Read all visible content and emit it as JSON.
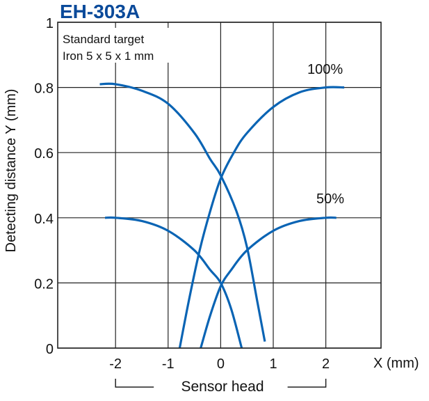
{
  "chart_data": {
    "type": "line",
    "title": "EH-303A",
    "title_color": "#0a4a9a",
    "xlabel": "X (mm)",
    "ylabel": "Detecting distance Y (mm)",
    "xlim": [
      -3.1,
      3.05
    ],
    "ylim": [
      0,
      1
    ],
    "xticks": [
      -2,
      -1,
      0,
      1,
      2
    ],
    "xtick_labels": [
      "-2",
      "-1",
      "0",
      "1",
      "2"
    ],
    "yticks": [
      0,
      0.2,
      0.4,
      0.6,
      0.8,
      1
    ],
    "ytick_labels": [
      "0",
      "0.2",
      "0.4",
      "0.6",
      "0.8",
      "1"
    ],
    "grid": true,
    "line_color": "#0a64b4",
    "annotations": {
      "target_line1": "Standard target",
      "target_line2": "Iron 5 x 5 x 1 mm",
      "label_100": "100%",
      "label_50": "50%",
      "sensor_head": "Sensor head"
    },
    "sensor_head_range": [
      -2,
      2
    ],
    "series": [
      {
        "group": "100%",
        "points": [
          [
            -2.3,
            0.81
          ],
          [
            -2,
            0.81
          ],
          [
            -1.5,
            0.79
          ],
          [
            -1,
            0.75
          ],
          [
            -0.5,
            0.66
          ],
          [
            -0.2,
            0.58
          ],
          [
            0,
            0.53
          ],
          [
            0.3,
            0.42
          ],
          [
            0.5,
            0.31
          ],
          [
            0.7,
            0.14
          ],
          [
            0.84,
            0.02
          ]
        ]
      },
      {
        "group": "100%",
        "points": [
          [
            -0.78,
            0
          ],
          [
            -0.6,
            0.15
          ],
          [
            -0.4,
            0.3
          ],
          [
            -0.2,
            0.42
          ],
          [
            0,
            0.52
          ],
          [
            0.25,
            0.6
          ],
          [
            0.5,
            0.66
          ],
          [
            1,
            0.74
          ],
          [
            1.5,
            0.785
          ],
          [
            2,
            0.8
          ],
          [
            2.35,
            0.8
          ]
        ]
      },
      {
        "group": "50%",
        "points": [
          [
            -2.2,
            0.4
          ],
          [
            -2,
            0.4
          ],
          [
            -1.5,
            0.39
          ],
          [
            -1,
            0.36
          ],
          [
            -0.5,
            0.3
          ],
          [
            -0.2,
            0.24
          ],
          [
            0,
            0.2
          ],
          [
            0.2,
            0.12
          ],
          [
            0.4,
            0
          ]
        ]
      },
      {
        "group": "50%",
        "points": [
          [
            -0.38,
            0
          ],
          [
            -0.2,
            0.1
          ],
          [
            0,
            0.19
          ],
          [
            0.2,
            0.24
          ],
          [
            0.5,
            0.3
          ],
          [
            1,
            0.36
          ],
          [
            1.5,
            0.39
          ],
          [
            2,
            0.4
          ],
          [
            2.2,
            0.4
          ]
        ]
      }
    ]
  }
}
